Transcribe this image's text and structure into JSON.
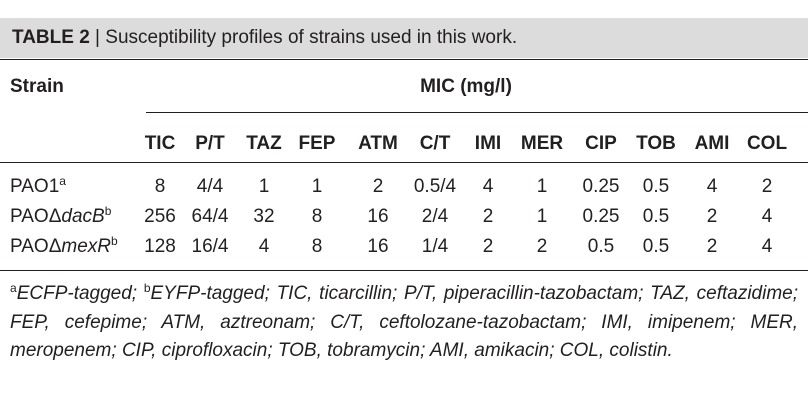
{
  "caption": {
    "number": "TABLE 2",
    "separator": "|",
    "text": "Susceptibility profiles of strains used in this work."
  },
  "table": {
    "strain_header": "Strain",
    "group_header": "MIC (mg/l)",
    "columns": [
      "TIC",
      "P/T",
      "TAZ",
      "FEP",
      "ATM",
      "C/T",
      "IMI",
      "MER",
      "CIP",
      "TOB",
      "AMI",
      "COL"
    ],
    "rows": [
      {
        "strain_prefix": "PAO1",
        "strain_italic": "",
        "superscript": "a",
        "values": [
          "8",
          "4/4",
          "1",
          "1",
          "2",
          "0.5/4",
          "4",
          "1",
          "0.25",
          "0.5",
          "4",
          "2"
        ]
      },
      {
        "strain_prefix": "PAOΔ",
        "strain_italic": "dacB",
        "superscript": "b",
        "values": [
          "256",
          "64/4",
          "32",
          "8",
          "16",
          "2/4",
          "2",
          "1",
          "0.25",
          "0.5",
          "2",
          "4"
        ]
      },
      {
        "strain_prefix": "PAOΔ",
        "strain_italic": "mexR",
        "superscript": "b",
        "values": [
          "128",
          "16/4",
          "4",
          "8",
          "16",
          "1/4",
          "2",
          "2",
          "0.5",
          "0.5",
          "2",
          "4"
        ]
      }
    ]
  },
  "footnote": {
    "sup_a": "a",
    "text_a": "ECFP-tagged; ",
    "sup_b": "b",
    "text_b": "EYFP-tagged; TIC, ticarcillin; P/T, piperacillin-tazobactam; TAZ, ceftazidime; FEP, cefepime; ATM, aztreonam; C/T, ceftolozane-tazobactam; IMI, imipenem; MER, meropenem; CIP, ciprofloxacin; TOB, tobramycin; AMI, amikacin; COL, colistin."
  }
}
